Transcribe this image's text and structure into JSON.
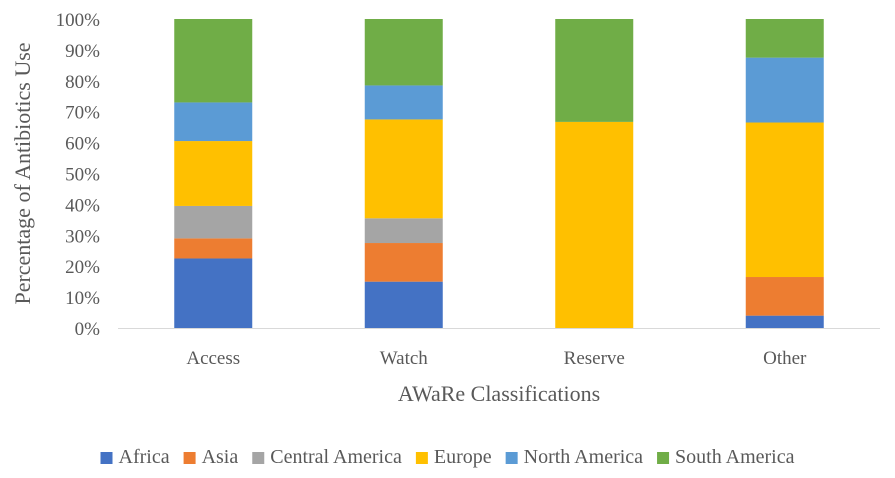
{
  "chart_data": {
    "type": "bar",
    "stacked": true,
    "percent_stacked": true,
    "categories": [
      "Access",
      "Watch",
      "Reserve",
      "Other"
    ],
    "series": [
      {
        "name": "Africa",
        "color": "#4472C4",
        "values": [
          22.5,
          15,
          0,
          4
        ]
      },
      {
        "name": "Asia",
        "color": "#ED7D31",
        "values": [
          6.5,
          12.5,
          0,
          12.5
        ]
      },
      {
        "name": "Central America",
        "color": "#A5A5A5",
        "values": [
          10.5,
          8,
          0,
          0
        ]
      },
      {
        "name": "Europe",
        "color": "#FFC000",
        "values": [
          21,
          32,
          66.7,
          50
        ]
      },
      {
        "name": "North America",
        "color": "#5B9BD5",
        "values": [
          12.5,
          11,
          0,
          21
        ]
      },
      {
        "name": "South America",
        "color": "#70AD47",
        "values": [
          27,
          21.5,
          33.3,
          12.5
        ]
      }
    ],
    "xlabel": "AWaRe Classifications",
    "ylabel": "Percentage of Antibiotics Use",
    "ylim": [
      0,
      100
    ],
    "yticks": [
      "0%",
      "10%",
      "20%",
      "30%",
      "40%",
      "50%",
      "60%",
      "70%",
      "80%",
      "90%",
      "100%"
    ],
    "grid": false,
    "legend_position": "bottom"
  }
}
